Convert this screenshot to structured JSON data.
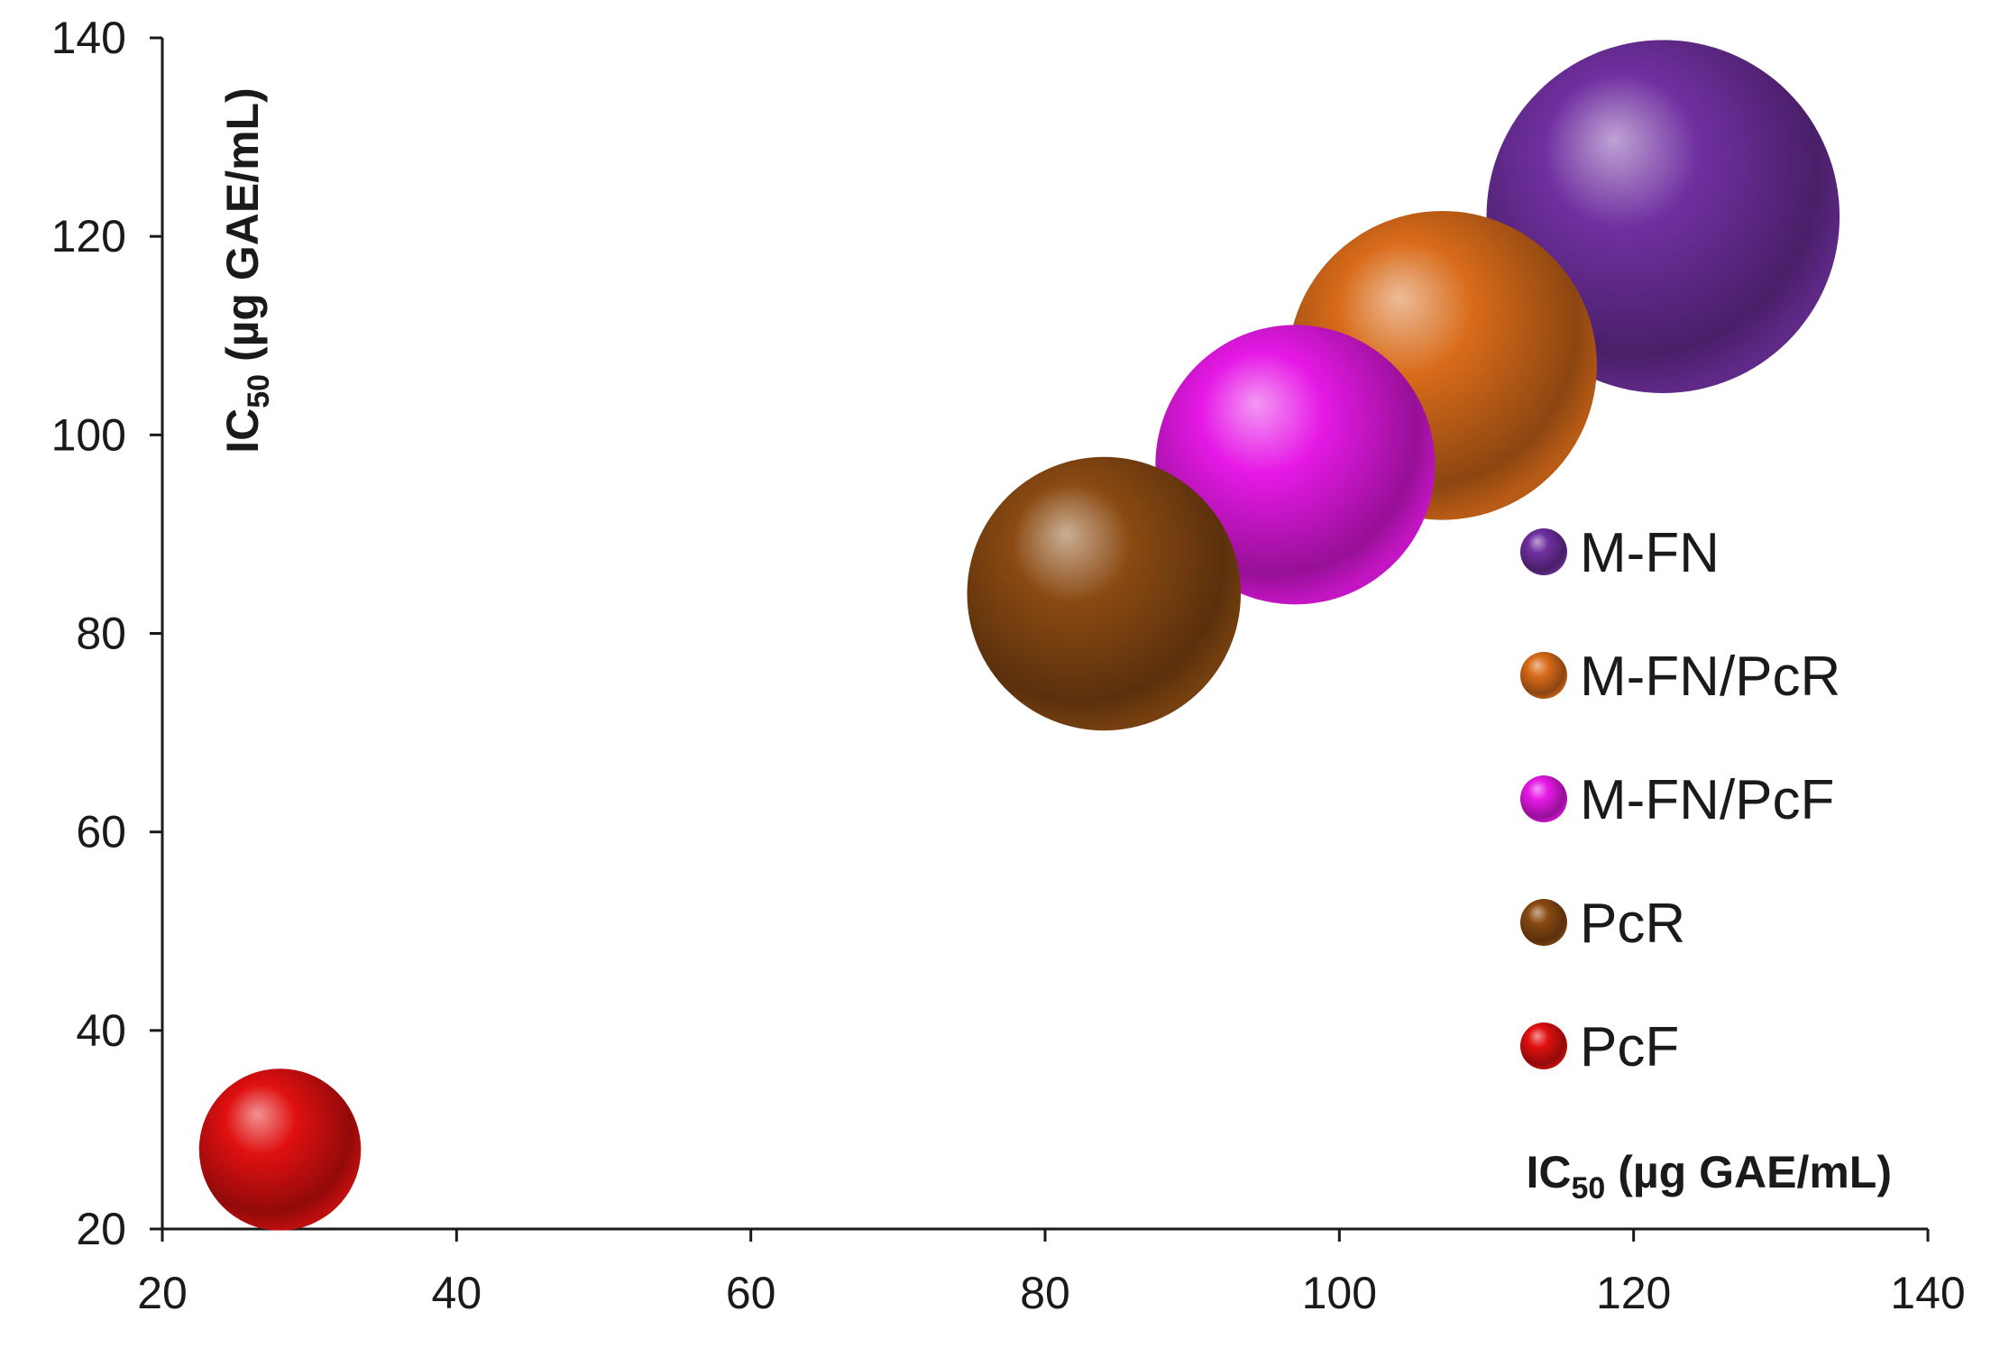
{
  "chart_data": {
    "type": "bubble",
    "xlim": [
      20,
      140
    ],
    "ylim": [
      20,
      140
    ],
    "xticks": [
      "20",
      "40",
      "60",
      "80",
      "100",
      "120",
      "140"
    ],
    "yticks": [
      "20",
      "40",
      "60",
      "80",
      "100",
      "120",
      "140"
    ],
    "xlabel": {
      "main": "IC",
      "sub": "50",
      "rest": " (µg GAE/mL)"
    },
    "ylabel": {
      "main": "IC",
      "sub": "50",
      "rest": " (µg GAE/mL)"
    },
    "legend_position": "right",
    "grid": false,
    "series": [
      {
        "name": "M-FN",
        "x": 122,
        "y": 122,
        "size": 12.0,
        "color": "#7030A0"
      },
      {
        "name": "M-FN/PcR",
        "x": 107,
        "y": 107,
        "size": 10.5,
        "color": "#D86B1A"
      },
      {
        "name": "M-FN/PcF",
        "x": 97,
        "y": 97,
        "size": 9.5,
        "color": "#E619E6"
      },
      {
        "name": "PcR",
        "x": 84,
        "y": 84,
        "size": 9.3,
        "color": "#8A4A12"
      },
      {
        "name": "PcF",
        "x": 28,
        "y": 28,
        "size": 5.5,
        "color": "#E01010"
      }
    ]
  }
}
